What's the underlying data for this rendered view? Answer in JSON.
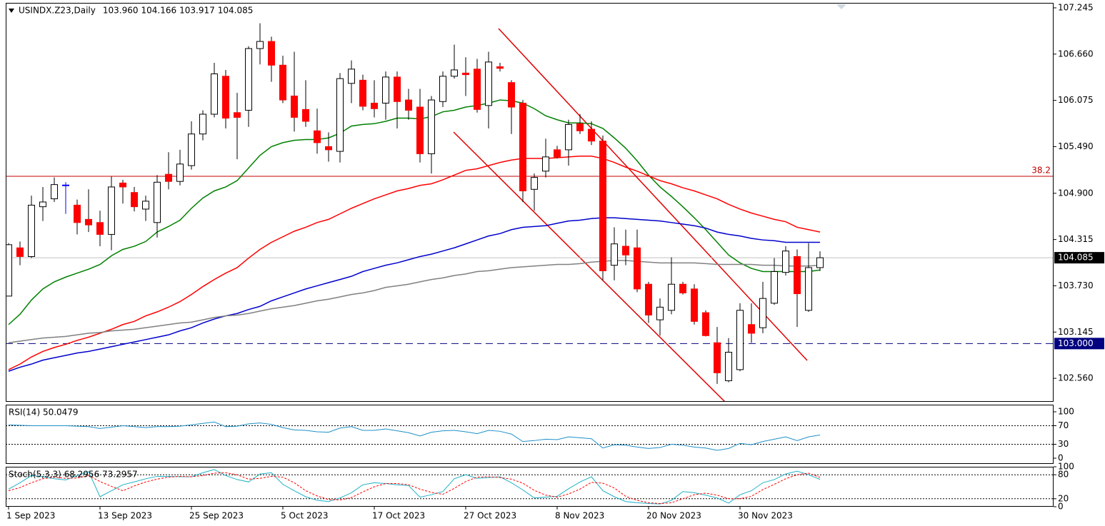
{
  "chart_data": [
    {
      "type": "candlestick",
      "title": "USINDX.Z23,Daily",
      "title_ohlc": [
        "103.960",
        "104.166",
        "103.917",
        "104.085"
      ],
      "categories": [
        "1 Sep 2023",
        null,
        null,
        null,
        null,
        null,
        null,
        null,
        "13 Sep 2023",
        null,
        null,
        null,
        null,
        null,
        null,
        null,
        "25 Sep 2023",
        null,
        null,
        null,
        null,
        null,
        null,
        null,
        "5 Oct 2023",
        null,
        null,
        null,
        null,
        null,
        null,
        null,
        "17 Oct 2023",
        null,
        null,
        null,
        null,
        null,
        null,
        null,
        "27 Oct 2023",
        null,
        null,
        null,
        null,
        null,
        null,
        null,
        "8 Nov 2023",
        null,
        null,
        null,
        null,
        null,
        null,
        null,
        "20 Nov 2023",
        null,
        null,
        null,
        null,
        null,
        null,
        null,
        "30 Nov 2023",
        null,
        null,
        null,
        null,
        null,
        null,
        null
      ],
      "open": [
        103.6,
        104.21,
        104.1,
        104.73,
        104.83,
        105.0,
        104.75,
        104.57,
        104.53,
        104.38,
        105.03,
        104.91,
        104.7,
        104.53,
        105.14,
        105.05,
        105.25,
        105.65,
        105.9,
        106.38,
        105.92,
        105.95,
        106.73,
        106.82,
        106.52,
        106.13,
        105.96,
        105.69,
        105.49,
        105.43,
        106.29,
        106.33,
        106.04,
        106.04,
        106.37,
        106.08,
        105.99,
        105.4,
        106.06,
        106.38,
        106.42,
        106.47,
        106.01,
        106.5,
        106.3,
        106.04,
        104.95,
        105.18,
        105.45,
        105.45,
        105.78,
        105.71,
        105.56,
        103.99,
        104.23,
        104.21,
        103.75,
        103.3,
        103.42,
        103.75,
        103.69,
        103.39,
        103.01,
        102.53,
        102.67,
        103.24,
        103.2,
        103.51,
        103.9,
        104.1,
        103.42,
        103.96
      ],
      "high": [
        104.27,
        104.29,
        104.87,
        104.98,
        105.1,
        105.04,
        104.82,
        104.95,
        104.68,
        105.11,
        105.07,
        104.98,
        104.87,
        105.13,
        105.42,
        105.45,
        105.81,
        105.95,
        106.55,
        106.46,
        106.17,
        106.76,
        107.05,
        106.88,
        106.64,
        106.69,
        106.33,
        105.97,
        105.67,
        106.42,
        106.58,
        106.4,
        106.33,
        106.44,
        106.44,
        106.22,
        106.22,
        106.13,
        106.44,
        106.78,
        106.62,
        106.6,
        106.69,
        106.55,
        106.33,
        106.08,
        105.15,
        105.59,
        105.5,
        105.83,
        105.9,
        105.81,
        105.63,
        104.47,
        104.44,
        104.44,
        103.78,
        103.57,
        104.09,
        103.78,
        103.75,
        103.42,
        103.21,
        103.07,
        103.51,
        103.51,
        103.78,
        104.08,
        104.23,
        104.19,
        104.27,
        104.166
      ],
      "low": [
        103.6,
        103.99,
        104.08,
        104.55,
        104.79,
        104.64,
        104.38,
        104.41,
        104.23,
        104.18,
        104.77,
        104.67,
        104.55,
        104.34,
        104.95,
        105.0,
        105.2,
        105.57,
        105.86,
        105.72,
        105.33,
        105.74,
        106.53,
        106.31,
        106.04,
        105.68,
        105.74,
        105.4,
        105.3,
        105.29,
        106.04,
        105.95,
        105.86,
        105.83,
        105.72,
        105.83,
        105.29,
        105.15,
        105.99,
        106.35,
        106.13,
        105.92,
        105.72,
        106.44,
        105.65,
        104.79,
        104.68,
        105.1,
        105.34,
        105.25,
        105.65,
        105.51,
        103.8,
        103.8,
        103.99,
        103.65,
        103.26,
        103.1,
        103.37,
        103.62,
        103.24,
        103.09,
        102.49,
        102.51,
        102.65,
        103.01,
        103.13,
        103.49,
        103.86,
        103.21,
        103.4,
        103.917
      ],
      "close": [
        104.25,
        104.1,
        104.75,
        104.79,
        105.01,
        105.0,
        104.53,
        104.5,
        104.38,
        104.98,
        104.98,
        104.73,
        104.8,
        105.04,
        105.05,
        105.27,
        105.65,
        105.9,
        106.41,
        105.85,
        105.86,
        106.73,
        106.82,
        106.52,
        106.08,
        105.86,
        105.81,
        105.54,
        105.45,
        106.35,
        106.47,
        106.0,
        105.97,
        106.37,
        106.06,
        105.95,
        105.4,
        106.08,
        106.38,
        106.46,
        106.4,
        105.96,
        106.56,
        106.48,
        105.99,
        104.93,
        105.1,
        105.36,
        105.36,
        105.77,
        105.69,
        105.56,
        103.92,
        104.26,
        104.12,
        103.69,
        103.36,
        103.46,
        103.75,
        103.64,
        103.28,
        103.1,
        102.63,
        102.89,
        103.42,
        103.13,
        103.57,
        103.91,
        104.17,
        103.63,
        103.96,
        104.085
      ],
      "up_color": "#ffffff",
      "down_color": "#ff0000",
      "doji_color": "#0000ff",
      "wick_color": "#000000",
      "overlays": [
        {
          "color": "#008000",
          "values": [
            103.24,
            103.37,
            103.55,
            103.69,
            103.78,
            103.84,
            103.89,
            103.94,
            104.0,
            104.11,
            104.19,
            104.23,
            104.29,
            104.41,
            104.48,
            104.56,
            104.71,
            104.84,
            104.93,
            104.98,
            105.06,
            105.22,
            105.38,
            105.49,
            105.54,
            105.57,
            105.58,
            105.58,
            105.6,
            105.66,
            105.75,
            105.77,
            105.78,
            105.81,
            105.85,
            105.85,
            105.84,
            105.87,
            105.93,
            105.95,
            105.99,
            106.01,
            106.04,
            106.08,
            106.07,
            106.04,
            105.97,
            105.88,
            105.83,
            105.79,
            105.79,
            105.78,
            105.72,
            105.6,
            105.47,
            105.31,
            105.13,
            104.98,
            104.86,
            104.73,
            104.59,
            104.44,
            104.28,
            104.12,
            104.02,
            103.95,
            103.91,
            103.91,
            103.91,
            103.91,
            103.91,
            103.93
          ]
        },
        {
          "color": "#ff0000",
          "values": [
            102.67,
            102.74,
            102.83,
            102.9,
            102.95,
            102.99,
            103.04,
            103.08,
            103.13,
            103.18,
            103.24,
            103.28,
            103.35,
            103.4,
            103.46,
            103.53,
            103.62,
            103.72,
            103.81,
            103.89,
            103.96,
            104.08,
            104.19,
            104.28,
            104.35,
            104.42,
            104.47,
            104.53,
            104.57,
            104.64,
            104.71,
            104.77,
            104.83,
            104.88,
            104.93,
            104.96,
            105.0,
            105.02,
            105.07,
            105.13,
            105.19,
            105.21,
            105.25,
            105.29,
            105.32,
            105.34,
            105.34,
            105.34,
            105.35,
            105.36,
            105.37,
            105.37,
            105.34,
            105.29,
            105.23,
            105.18,
            105.12,
            105.06,
            105.02,
            104.97,
            104.93,
            104.88,
            104.83,
            104.76,
            104.7,
            104.65,
            104.61,
            104.57,
            104.54,
            104.47,
            104.44,
            104.41
          ]
        },
        {
          "color": "#0000cc",
          "values": [
            102.65,
            102.7,
            102.74,
            102.79,
            102.82,
            102.85,
            102.88,
            102.9,
            102.93,
            102.96,
            102.99,
            103.02,
            103.05,
            103.08,
            103.11,
            103.16,
            103.2,
            103.26,
            103.31,
            103.35,
            103.38,
            103.43,
            103.47,
            103.54,
            103.59,
            103.64,
            103.69,
            103.73,
            103.77,
            103.81,
            103.85,
            103.91,
            103.95,
            103.99,
            104.02,
            104.06,
            104.1,
            104.13,
            104.17,
            104.21,
            104.26,
            104.31,
            104.36,
            104.39,
            104.44,
            104.47,
            104.48,
            104.49,
            104.52,
            104.55,
            104.56,
            104.58,
            104.59,
            104.59,
            104.58,
            104.57,
            104.56,
            104.55,
            104.53,
            104.51,
            104.49,
            104.46,
            104.41,
            104.38,
            104.36,
            104.33,
            104.31,
            104.3,
            104.28,
            104.28,
            104.28,
            104.28
          ]
        },
        {
          "color": "#808080",
          "values": [
            103.01,
            103.03,
            103.05,
            103.07,
            103.08,
            103.09,
            103.11,
            103.13,
            103.14,
            103.16,
            103.17,
            103.18,
            103.2,
            103.22,
            103.24,
            103.26,
            103.27,
            103.3,
            103.33,
            103.35,
            103.36,
            103.38,
            103.41,
            103.44,
            103.46,
            103.48,
            103.51,
            103.54,
            103.56,
            103.59,
            103.62,
            103.64,
            103.67,
            103.71,
            103.73,
            103.75,
            103.78,
            103.81,
            103.83,
            103.86,
            103.88,
            103.91,
            103.92,
            103.94,
            103.96,
            103.97,
            103.98,
            103.99,
            104.0,
            104.0,
            104.01,
            104.03,
            104.04,
            104.05,
            104.05,
            104.04,
            104.03,
            104.02,
            104.02,
            104.02,
            104.02,
            104.01,
            104.0,
            104.0,
            104.0,
            104.0,
            103.99,
            103.99,
            103.98,
            103.98,
            103.98,
            103.99
          ]
        }
      ],
      "ylim": [
        102.263,
        107.308
      ],
      "yticks": [
        107.245,
        {
          "value": 106.66,
          "label": "106.660"
        },
        106.075,
        {
          "value": 105.49,
          "label": "105.490"
        },
        {
          "value": 104.9,
          "label": "104.900"
        },
        104.315,
        {
          "value": 103.73,
          "label": "103.730"
        },
        103.145,
        {
          "value": 102.56,
          "label": "102.560"
        }
      ],
      "levels": [
        {
          "value": 105.115,
          "label": "38.2",
          "color": "#c00000"
        },
        {
          "value": 103,
          "label": "103.000",
          "color": "#000080",
          "dash": true
        }
      ],
      "last_price": 104.085
    },
    {
      "type": "line",
      "title": "RSI(14) 50.0479",
      "color": "#1e90c8",
      "values": [
        72,
        71,
        70,
        70,
        70,
        70,
        69,
        68,
        64,
        67,
        70,
        68,
        66,
        68,
        68,
        69,
        72,
        75,
        78,
        68,
        69,
        74,
        76,
        73,
        66,
        61,
        60,
        57,
        56,
        65,
        68,
        60,
        60,
        63,
        59,
        55,
        48,
        56,
        59,
        60,
        57,
        53,
        60,
        58,
        52,
        36,
        38,
        41,
        40,
        46,
        44,
        42,
        22,
        29,
        28,
        24,
        21,
        23,
        30,
        28,
        24,
        22,
        17,
        21,
        32,
        29,
        36,
        41,
        46,
        38,
        46,
        50.0479
      ],
      "ylim": [
        -12.3,
        115.4
      ],
      "yticks": [
        100,
        70,
        30,
        0
      ],
      "levels": [
        70,
        30
      ]
    },
    {
      "type": "line",
      "title": "Stoch(5,3,3) 68.2956 73.2957",
      "series": [
        {
          "color": "#20b2c8",
          "values": [
            44,
            60,
            78,
            75,
            70,
            67,
            78,
            88,
            25,
            40,
            55,
            62,
            70,
            76,
            76,
            75,
            75,
            85,
            93,
            78,
            68,
            62,
            82,
            85,
            56,
            40,
            25,
            16,
            13,
            22,
            35,
            55,
            60,
            58,
            55,
            53,
            24,
            30,
            38,
            70,
            80,
            71,
            73,
            75,
            60,
            42,
            22,
            24,
            26,
            45,
            62,
            75,
            40,
            25,
            13,
            10,
            8,
            7,
            16,
            38,
            35,
            29,
            22,
            9,
            30,
            40,
            60,
            68,
            82,
            89,
            80,
            68.2956
          ]
        },
        {
          "color": "#ff0000",
          "dash": true,
          "values": [
            40,
            48,
            60,
            70,
            74,
            71,
            72,
            78,
            63,
            51,
            40,
            52,
            62,
            69,
            74,
            76,
            75,
            78,
            84,
            85,
            80,
            69,
            71,
            76,
            74,
            60,
            40,
            27,
            18,
            17,
            23,
            37,
            50,
            58,
            58,
            55,
            44,
            36,
            31,
            46,
            63,
            74,
            75,
            73,
            69,
            59,
            41,
            29,
            24,
            32,
            44,
            61,
            59,
            47,
            26,
            16,
            10,
            8,
            10,
            20,
            30,
            34,
            29,
            20,
            20,
            26,
            43,
            56,
            70,
            80,
            84,
            73.2957
          ]
        }
      ],
      "ylim": [
        0,
        100
      ],
      "yticks": [
        100,
        80,
        20,
        0
      ],
      "levels": [
        80,
        20
      ]
    }
  ]
}
